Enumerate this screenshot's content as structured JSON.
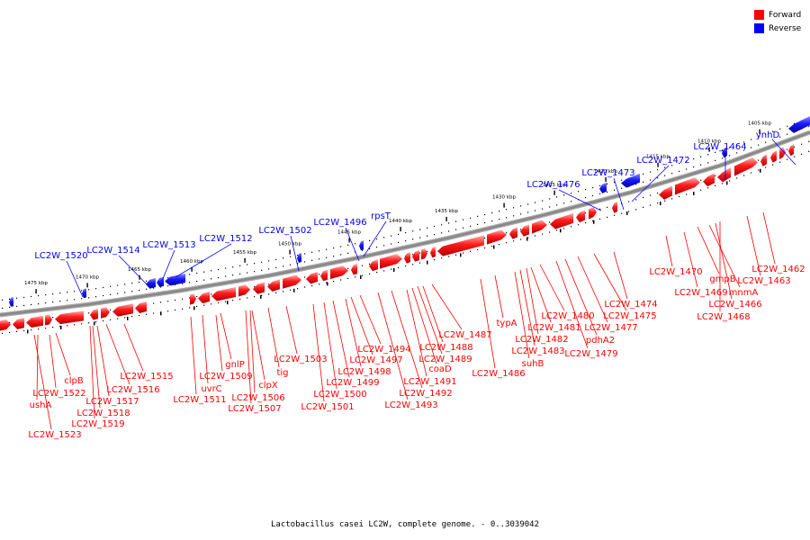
{
  "legend": [
    {
      "label": "Forward",
      "color": "#ff0000"
    },
    {
      "label": "Reverse",
      "color": "#0000ff"
    }
  ],
  "caption": "Lactobacillus casei LC2W, complete genome. - 0..3039042",
  "colors": {
    "forward": "#ff0000",
    "reverse": "#0000ff",
    "backbone": "#888888"
  },
  "ticks": [
    "1475 kbp",
    "1470 kbp",
    "1465 kbp",
    "1460 kbp",
    "1455 kbp",
    "1450 kbp",
    "1445 kbp",
    "1440 kbp",
    "1435 kbp",
    "1430 kbp",
    "1425 kbp",
    "1420 kbp",
    "1415 kbp",
    "1410 kbp",
    "1405 kbp"
  ],
  "reverse_labels": [
    "LC2W_1520",
    "LC2W_1514",
    "LC2W_1513",
    "LC2W_1512",
    "LC2W_1502",
    "LC2W_1496",
    "rpsT",
    "LC2W_1476",
    "LC2W_1473",
    "LC2W_1472",
    "LC2W_1464",
    "ynhD"
  ],
  "forward_labels": [
    "clpB",
    "LC2W_1522",
    "ushA",
    "LC2W_1523",
    "LC2W_1517",
    "LC2W_1518",
    "LC2W_1519",
    "LC2W_1516",
    "LC2W_1515",
    "LC2W_1511",
    "uvrC",
    "LC2W_1509",
    "gnlP",
    "LC2W_1507",
    "LC2W_1506",
    "clpX",
    "tig",
    "LC2W_1503",
    "LC2W_1501",
    "LC2W_1500",
    "LC2W_1499",
    "LC2W_1498",
    "LC2W_1497",
    "LC2W_1494",
    "LC2W_1493",
    "LC2W_1492",
    "LC2W_1491",
    "coaD",
    "LC2W_1489",
    "LC2W_1488",
    "LC2W_1487",
    "LC2W_1486",
    "typA",
    "suhB",
    "LC2W_1483",
    "LC2W_1482",
    "LC2W_1481",
    "LC2W_1480",
    "LC2W_1479",
    "pdhA2",
    "LC2W_1477",
    "LC2W_1475",
    "LC2W_1474",
    "LC2W_1470",
    "LC2W_1469",
    "gmpB",
    "mnmA",
    "LC2W_1466",
    "LC2W_1468",
    "LC2W_1463",
    "LC2W_1462"
  ]
}
